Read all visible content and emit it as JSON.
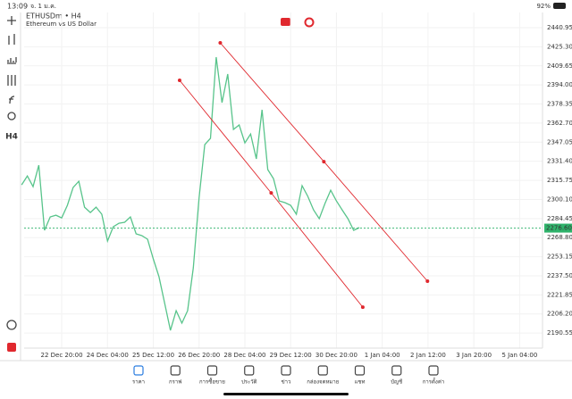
{
  "status_bar": {
    "time": "13:09",
    "date": "จ. 1 ม.ค.",
    "battery": "92%"
  },
  "toolbar": {
    "timeframe": "H4"
  },
  "chart_data": {
    "type": "line",
    "title": "ETHUSDm • H4",
    "subtitle": "Ethereum vs US Dollar",
    "color": "#58c48b",
    "grid": true,
    "x": [
      0,
      1,
      2,
      3,
      4,
      5,
      6,
      7,
      8,
      9,
      10,
      11,
      12,
      13,
      14,
      15,
      16,
      17,
      18,
      19,
      20,
      21,
      22,
      23,
      24,
      25,
      26,
      27,
      28,
      29,
      30,
      31,
      32,
      33,
      34,
      35,
      36,
      37,
      38,
      39,
      40,
      41,
      42,
      43,
      44,
      45,
      46,
      47,
      48,
      49,
      50,
      51,
      52,
      53,
      54,
      55,
      56,
      57,
      58,
      59
    ],
    "values": [
      2312.1,
      2319.4,
      2310.6,
      2328.2,
      2274.8,
      2285.8,
      2287.2,
      2285.0,
      2295.3,
      2309.9,
      2315.0,
      2293.8,
      2289.4,
      2293.8,
      2288.0,
      2266.0,
      2277.7,
      2280.6,
      2281.4,
      2285.8,
      2271.9,
      2270.4,
      2267.5,
      2251.4,
      2236.7,
      2214.8,
      2192.8,
      2208.9,
      2198.7,
      2208.9,
      2244.1,
      2301.1,
      2345.1,
      2350.2,
      2416.8,
      2379.5,
      2402.9,
      2357.5,
      2361.2,
      2346.5,
      2353.8,
      2333.4,
      2373.6,
      2324.6,
      2317.2,
      2298.9,
      2297.5,
      2295.3,
      2288.0,
      2311.4,
      2302.6,
      2291.6,
      2284.3,
      2296.8,
      2307.7,
      2298.9,
      2291.6,
      2284.3,
      2274.8,
      2277.0
    ],
    "current_price": {
      "value": 2276.6,
      "label": "2276.60"
    },
    "current_color": "#2fb36b",
    "trendlines": [
      {
        "color": "#e0282e",
        "x": [
          27.6,
          43.6,
          59.6
        ],
        "values": [
          2397.8,
          2305.5,
          2211.8
        ]
      },
      {
        "color": "#e0282e",
        "x": [
          34.7,
          52.8,
          70.9
        ],
        "values": [
          2428.5,
          2331.1,
          2233.1
        ]
      }
    ],
    "xlim": [
      0,
      91
    ],
    "ylim": [
      2178.2,
      2453.4
    ],
    "xticks": [
      {
        "value": 7,
        "label": "22 Dec 20:00"
      },
      {
        "value": 15,
        "label": "24 Dec 04:00"
      },
      {
        "value": 23,
        "label": "25 Dec 12:00"
      },
      {
        "value": 31,
        "label": "26 Dec 20:00"
      },
      {
        "value": 39,
        "label": "28 Dec 04:00"
      },
      {
        "value": 47,
        "label": "29 Dec 12:00"
      },
      {
        "value": 55,
        "label": "30 Dec 20:00"
      },
      {
        "value": 63,
        "label": "1 Jan 04:00"
      },
      {
        "value": 71,
        "label": "2 Jan 12:00"
      },
      {
        "value": 79,
        "label": "3 Jan 20:00"
      },
      {
        "value": 87,
        "label": "5 Jan 04:00"
      }
    ],
    "yticks": [
      2440.95,
      {
        "value": 2425.3,
        "label": "2425.30"
      },
      2409.65,
      {
        "value": 2394,
        "label": "2394.00"
      },
      2378.35,
      {
        "value": 2362.7,
        "label": "2362.70"
      },
      2347.05,
      {
        "value": 2331.4,
        "label": "2331.40"
      },
      2315.75,
      {
        "value": 2300.1,
        "label": "2300.10"
      },
      2284.45,
      {
        "value": 2268.8,
        "label": "2268.80"
      },
      2253.15,
      {
        "value": 2237.5,
        "label": "2237.50"
      },
      2221.85,
      {
        "value": 2206.2,
        "label": "2206.20"
      },
      2190.55
    ]
  },
  "nav": {
    "active": 0,
    "active_color": "#2b7de0",
    "items": [
      "ราคา",
      "กราฟ",
      "การซื้อขาย",
      "ประวัติ",
      "ข่าว",
      "กล่องจดหมาย",
      "แชท",
      "บัญชี",
      "การตั้งค่า"
    ]
  }
}
